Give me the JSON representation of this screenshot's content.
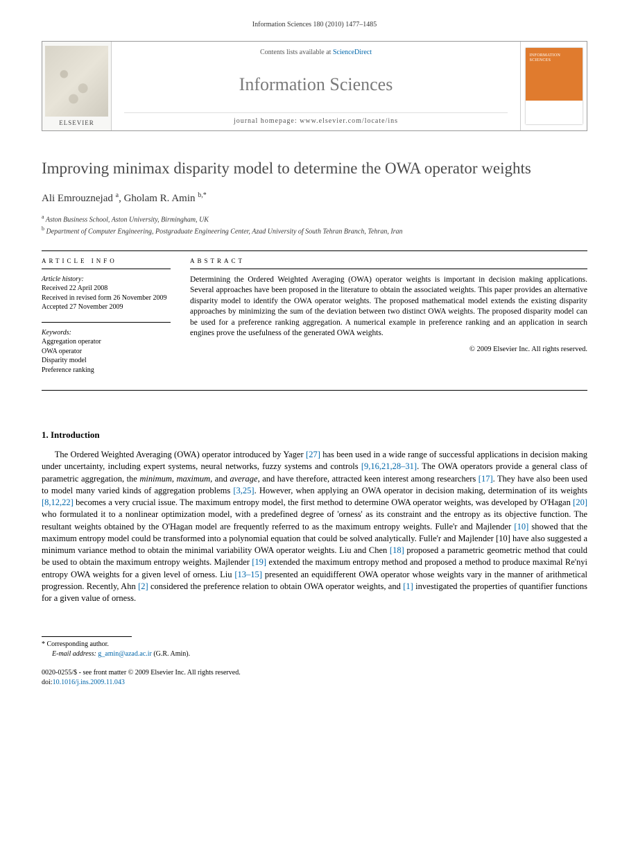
{
  "header_citation": "Information Sciences 180 (2010) 1477–1485",
  "banner": {
    "contents_prefix": "Contents lists available at ",
    "contents_link": "ScienceDirect",
    "journal_name": "Information Sciences",
    "homepage_line": "journal homepage: www.elsevier.com/locate/ins",
    "publisher": "ELSEVIER",
    "cover_title": "INFORMATION SCIENCES"
  },
  "title": "Improving minimax disparity model to determine the OWA operator weights",
  "authors_html": "Ali Emrouznejad <sup>a</sup>, Gholam R. Amin <sup>b,*</sup>",
  "affiliations": [
    {
      "marker": "a",
      "text": "Aston Business School, Aston University, Birmingham, UK"
    },
    {
      "marker": "b",
      "text": "Department of Computer Engineering, Postgraduate Engineering Center, Azad University of South Tehran Branch, Tehran, Iran"
    }
  ],
  "article_info": {
    "label": "ARTICLE INFO",
    "history_label": "Article history:",
    "history": [
      "Received 22 April 2008",
      "Received in revised form 26 November 2009",
      "Accepted 27 November 2009"
    ],
    "keywords_label": "Keywords:",
    "keywords": [
      "Aggregation operator",
      "OWA operator",
      "Disparity model",
      "Preference ranking"
    ]
  },
  "abstract": {
    "label": "ABSTRACT",
    "text": "Determining the Ordered Weighted Averaging (OWA) operator weights is important in decision making applications. Several approaches have been proposed in the literature to obtain the associated weights. This paper provides an alternative disparity model to identify the OWA operator weights. The proposed mathematical model extends the existing disparity approaches by minimizing the sum of the deviation between two distinct OWA weights. The proposed disparity model can be used for a preference ranking aggregation. A numerical example in preference ranking and an application in search engines prove the usefulness of the generated OWA weights.",
    "copyright": "© 2009 Elsevier Inc. All rights reserved."
  },
  "section1": {
    "heading": "1. Introduction",
    "paragraph": "The Ordered Weighted Averaging (OWA) operator introduced by Yager [27] has been used in a wide range of successful applications in decision making under uncertainty, including expert systems, neural networks, fuzzy systems and controls [9,16,21,28–31]. The OWA operators provide a general class of parametric aggregation, the minimum, maximum, and average, and have therefore, attracted keen interest among researchers [17]. They have also been used to model many varied kinds of aggregation problems [3,25]. However, when applying an OWA operator in decision making, determination of its weights [8,12,22] becomes a very crucial issue. The maximum entropy model, the first method to determine OWA operator weights, was developed by O'Hagan [20] who formulated it to a nonlinear optimization model, with a predefined degree of 'orness' as its constraint and the entropy as its objective function. The resultant weights obtained by the O'Hagan model are frequently referred to as the maximum entropy weights. Fulle'r and Majlender [10] showed that the maximum entropy model could be transformed into a polynomial equation that could be solved analytically. Fulle'r and Majlender [10] have also suggested a minimum variance method to obtain the minimal variability OWA operator weights. Liu and Chen [18] proposed a parametric geometric method that could be used to obtain the maximum entropy weights. Majlender [19] extended the maximum entropy method and proposed a method to produce maximal Re'nyi entropy OWA weights for a given level of orness. Liu [13–15] presented an equidifferent OWA operator whose weights vary in the manner of arithmetical progression. Recently, Ahn [2] considered the preference relation to obtain OWA operator weights, and [1] investigated the properties of quantifier functions for a given value of orness.",
    "refs": [
      "[27]",
      "[9,16,21,28–31]",
      "[17]",
      "[3,25]",
      "[8,12,22]",
      "[20]",
      "[10]",
      "[10]",
      "[18]",
      "[19]",
      "[13–15]",
      "[2]",
      "[1]"
    ]
  },
  "footnote": {
    "corr_label": "* Corresponding author.",
    "email_label": "E-mail address:",
    "email": "g_amin@azad.ac.ir",
    "email_who": "(G.R. Amin)."
  },
  "footer": {
    "line1": "0020-0255/$ - see front matter © 2009 Elsevier Inc. All rights reserved.",
    "doi_label": "doi:",
    "doi": "10.1016/j.ins.2009.11.043"
  },
  "colors": {
    "link": "#0066aa",
    "cover": "#e07b2e",
    "title_gray": "#4a4a4a",
    "journal_gray": "#7a7a7a"
  }
}
